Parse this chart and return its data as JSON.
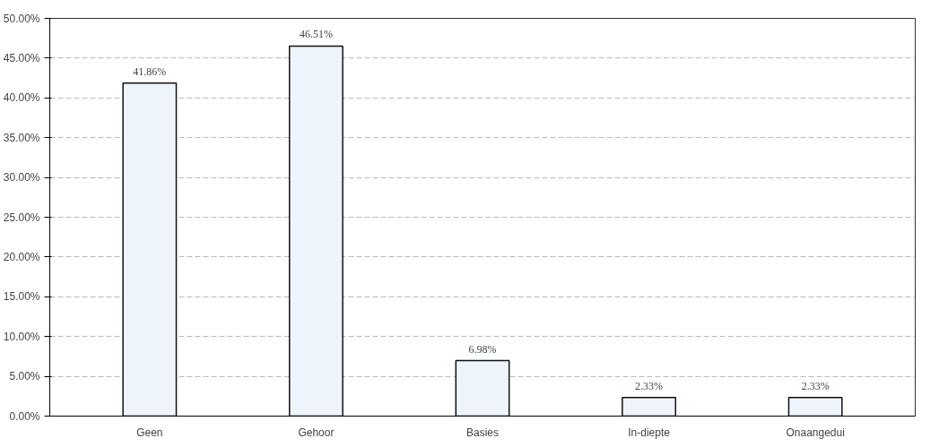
{
  "chart_data": {
    "type": "bar",
    "categories": [
      "Geen",
      "Gehoor",
      "Basies",
      "In-diepte",
      "Onaangedui"
    ],
    "values": [
      41.86,
      46.51,
      6.98,
      2.33,
      2.33
    ],
    "value_labels": [
      "41.86%",
      "46.51%",
      "6.98%",
      "2.33%",
      "2.33%"
    ],
    "color": "#eef4fb",
    "ylim": [
      0,
      50
    ],
    "yticks": [
      {
        "value": 0,
        "label": "0.00%"
      },
      {
        "value": 5,
        "label": "5.00%"
      },
      {
        "value": 10,
        "label": "10.00%"
      },
      {
        "value": 15,
        "label": "15.00%"
      },
      {
        "value": 20,
        "label": "20.00%"
      },
      {
        "value": 25,
        "label": "25.00%"
      },
      {
        "value": 30,
        "label": "30.00%"
      },
      {
        "value": 35,
        "label": "35.00%"
      },
      {
        "value": 40,
        "label": "40.00%"
      },
      {
        "value": 45,
        "label": "45.00%"
      },
      {
        "value": 50,
        "label": "50.00%"
      }
    ],
    "grid": "y"
  }
}
